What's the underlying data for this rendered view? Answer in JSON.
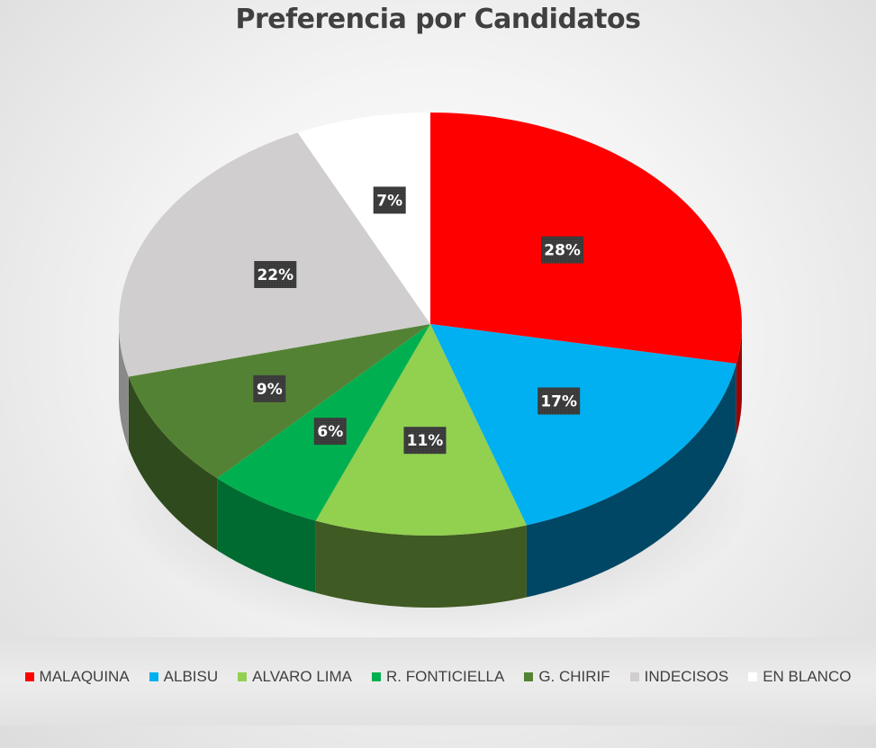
{
  "chart_data": {
    "type": "pie",
    "title": "Preferencia por Candidatos",
    "categories": [
      "MALAQUINA",
      "ALBISU",
      "ALVARO LIMA",
      "R. FONTICIELLA",
      "G. CHIRIF",
      "INDECISOS",
      "EN BLANCO"
    ],
    "values": [
      28,
      17,
      11,
      6,
      9,
      22,
      7
    ],
    "labels": [
      "28%",
      "17%",
      "11%",
      "6%",
      "9%",
      "22%",
      "7%"
    ],
    "colors": [
      "#ff0000",
      "#00b0f0",
      "#92d050",
      "#00b050",
      "#548235",
      "#d0cece",
      "#ffffff"
    ],
    "side_colors": [
      "#a00000",
      "#004766",
      "#3f5a22",
      "#006b31",
      "#2f4a1d",
      "#8a8888",
      "#b5b5b5"
    ],
    "legend_position": "bottom"
  }
}
